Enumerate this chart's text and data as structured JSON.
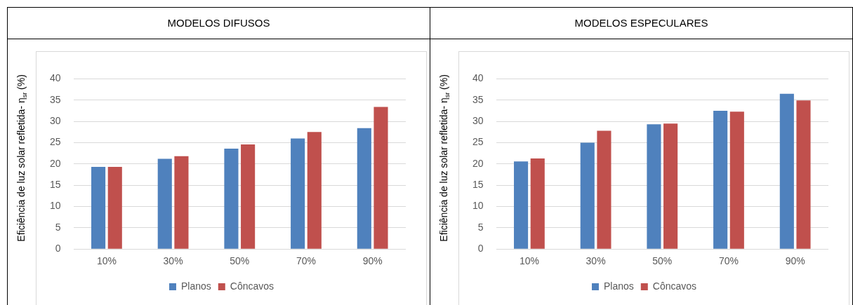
{
  "chart_data": [
    {
      "type": "bar",
      "title": "MODELOS DIFUSOS",
      "ylabel": "Eficiência de luz solar refletida- η$_{sr}$ (%)",
      "categories": [
        "10%",
        "30%",
        "50%",
        "70%",
        "90%"
      ],
      "series": [
        {
          "name": "Planos",
          "color": "#4f81bd",
          "values": [
            19.3,
            21.2,
            23.6,
            26.0,
            28.4
          ]
        },
        {
          "name": "Côncavos",
          "color": "#c0504d",
          "values": [
            19.3,
            21.8,
            24.6,
            27.5,
            33.4
          ]
        }
      ],
      "ylim": [
        0,
        40
      ],
      "yticks": [
        0,
        5,
        10,
        15,
        20,
        25,
        30,
        35,
        40
      ],
      "grid": "y",
      "legend": "bottom"
    },
    {
      "type": "bar",
      "title": "MODELOS ESPECULARES",
      "ylabel": "Eficiência de luz solar refletida- η$_{sr}$ (%)",
      "categories": [
        "10%",
        "30%",
        "50%",
        "70%",
        "90%"
      ],
      "series": [
        {
          "name": "Planos",
          "color": "#4f81bd",
          "values": [
            20.6,
            25.0,
            29.3,
            32.5,
            36.5
          ]
        },
        {
          "name": "Côncavos",
          "color": "#c0504d",
          "values": [
            21.3,
            27.8,
            29.5,
            32.3,
            34.9
          ]
        }
      ],
      "ylim": [
        0,
        40
      ],
      "yticks": [
        0,
        5,
        10,
        15,
        20,
        25,
        30,
        35,
        40
      ],
      "grid": "y",
      "legend": "bottom"
    }
  ]
}
